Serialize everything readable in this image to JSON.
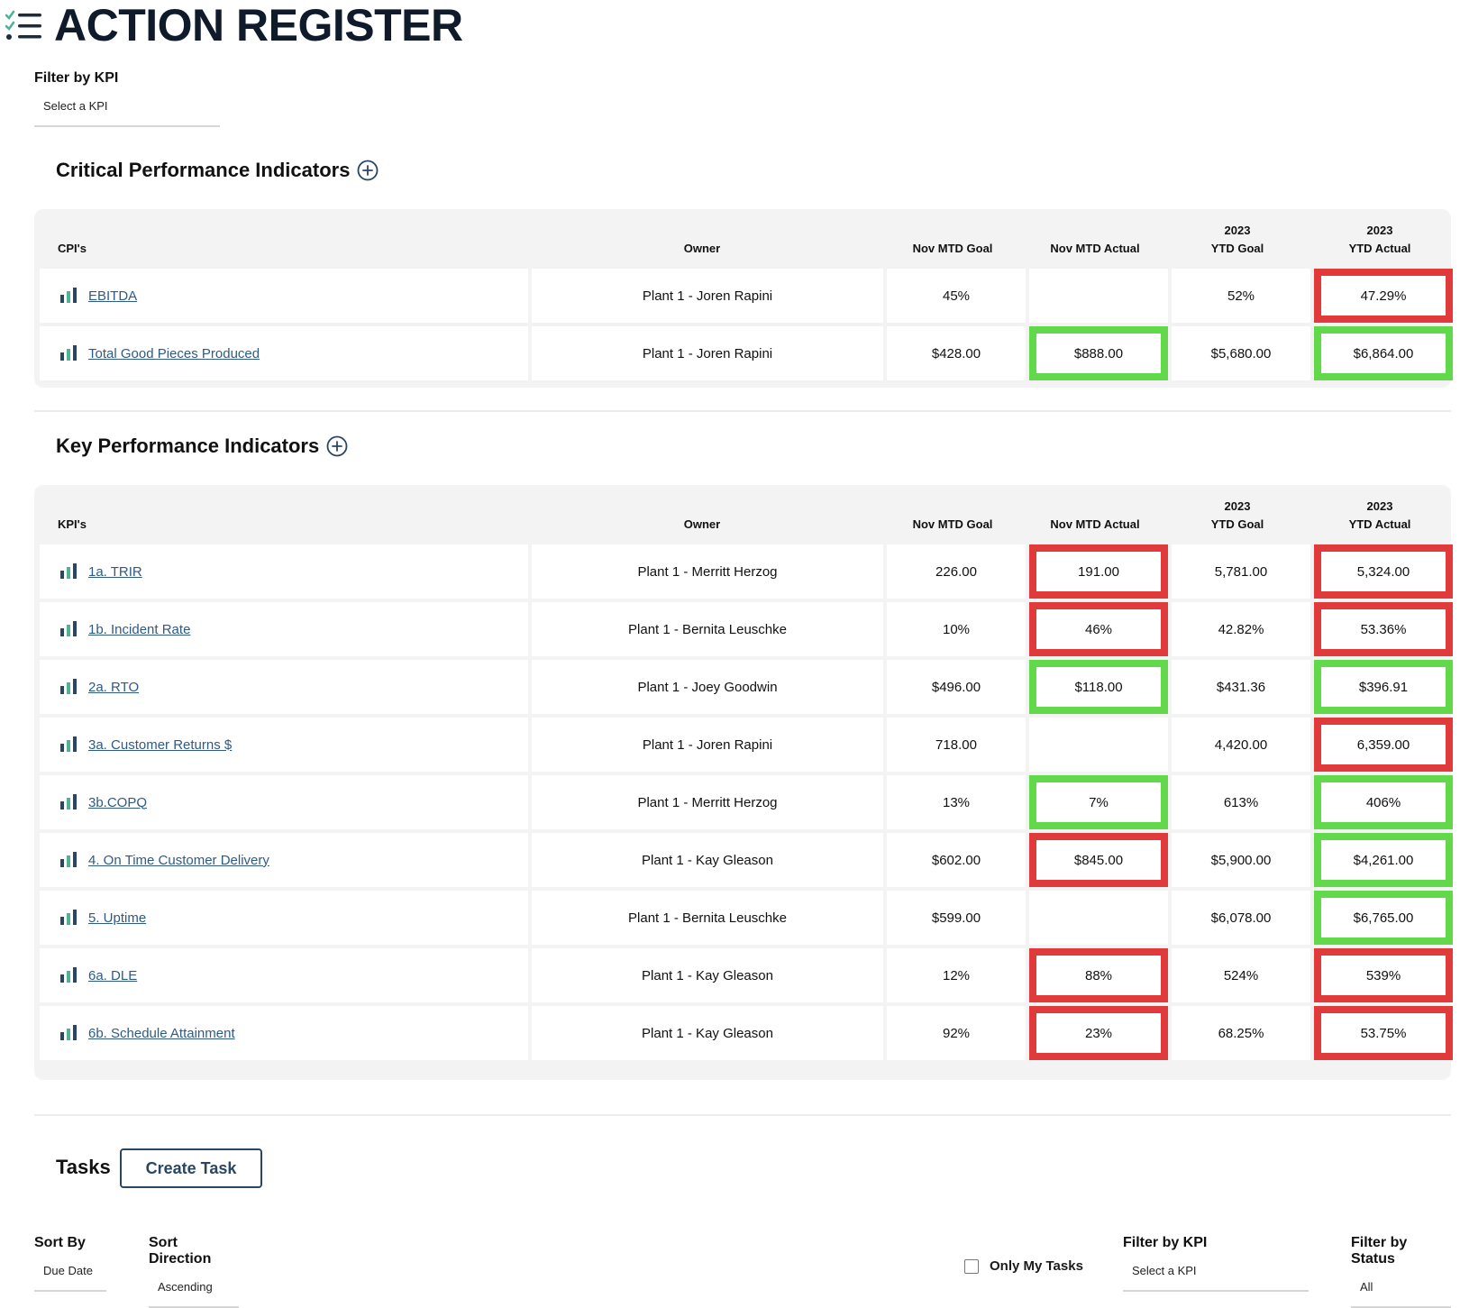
{
  "header": {
    "title": "ACTION REGISTER"
  },
  "kpi_filter_top": {
    "label": "Filter by KPI",
    "value": "Select a KPI"
  },
  "cpi": {
    "title": "Critical Performance Indicators",
    "columns": {
      "name": "CPI's",
      "owner": "Owner",
      "mtd_goal": "Nov MTD Goal",
      "mtd_actual": "Nov MTD Actual",
      "ytd_goal_year": "2023",
      "ytd_goal": "YTD Goal",
      "ytd_actual_year": "2023",
      "ytd_actual": "YTD Actual"
    },
    "rows": [
      {
        "name": "EBITDA",
        "owner": "Plant 1 - Joren Rapini",
        "mtd_goal": "45%",
        "mtd_actual": "",
        "mtd_actual_status": "none",
        "ytd_goal": "52%",
        "ytd_actual": "47.29%",
        "ytd_actual_status": "red"
      },
      {
        "name": "Total Good Pieces Produced",
        "owner": "Plant 1 - Joren Rapini",
        "mtd_goal": "$428.00",
        "mtd_actual": "$888.00",
        "mtd_actual_status": "green",
        "ytd_goal": "$5,680.00",
        "ytd_actual": "$6,864.00",
        "ytd_actual_status": "green"
      }
    ]
  },
  "kpi": {
    "title": "Key Performance Indicators",
    "columns": {
      "name": "KPI's",
      "owner": "Owner",
      "mtd_goal": "Nov MTD Goal",
      "mtd_actual": "Nov MTD Actual",
      "ytd_goal_year": "2023",
      "ytd_goal": "YTD Goal",
      "ytd_actual_year": "2023",
      "ytd_actual": "YTD Actual"
    },
    "rows": [
      {
        "name": "1a. TRIR",
        "owner": "Plant 1 - Merritt Herzog",
        "mtd_goal": "226.00",
        "mtd_actual": "191.00",
        "mtd_actual_status": "red",
        "ytd_goal": "5,781.00",
        "ytd_actual": "5,324.00",
        "ytd_actual_status": "red"
      },
      {
        "name": "1b. Incident Rate",
        "owner": "Plant 1 - Bernita Leuschke",
        "mtd_goal": "10%",
        "mtd_actual": "46%",
        "mtd_actual_status": "red",
        "ytd_goal": "42.82%",
        "ytd_actual": "53.36%",
        "ytd_actual_status": "red"
      },
      {
        "name": "2a. RTO",
        "owner": "Plant 1 - Joey Goodwin",
        "mtd_goal": "$496.00",
        "mtd_actual": "$118.00",
        "mtd_actual_status": "green",
        "ytd_goal": "$431.36",
        "ytd_actual": "$396.91",
        "ytd_actual_status": "green"
      },
      {
        "name": "3a. Customer Returns $",
        "owner": "Plant 1 - Joren Rapini",
        "mtd_goal": "718.00",
        "mtd_actual": "",
        "mtd_actual_status": "none",
        "ytd_goal": "4,420.00",
        "ytd_actual": "6,359.00",
        "ytd_actual_status": "red"
      },
      {
        "name": "3b.COPQ",
        "owner": "Plant 1 - Merritt Herzog",
        "mtd_goal": "13%",
        "mtd_actual": "7%",
        "mtd_actual_status": "green",
        "ytd_goal": "613%",
        "ytd_actual": "406%",
        "ytd_actual_status": "green"
      },
      {
        "name": "4. On Time Customer Delivery",
        "owner": "Plant 1 - Kay Gleason",
        "mtd_goal": "$602.00",
        "mtd_actual": "$845.00",
        "mtd_actual_status": "red",
        "ytd_goal": "$5,900.00",
        "ytd_actual": "$4,261.00",
        "ytd_actual_status": "green"
      },
      {
        "name": "5. Uptime",
        "owner": "Plant 1 - Bernita Leuschke",
        "mtd_goal": "$599.00",
        "mtd_actual": "",
        "mtd_actual_status": "none",
        "ytd_goal": "$6,078.00",
        "ytd_actual": "$6,765.00",
        "ytd_actual_status": "green"
      },
      {
        "name": "6a. DLE",
        "owner": "Plant 1 - Kay Gleason",
        "mtd_goal": "12%",
        "mtd_actual": "88%",
        "mtd_actual_status": "red",
        "ytd_goal": "524%",
        "ytd_actual": "539%",
        "ytd_actual_status": "red"
      },
      {
        "name": "6b. Schedule Attainment",
        "owner": "Plant 1 - Kay Gleason",
        "mtd_goal": "92%",
        "mtd_actual": "23%",
        "mtd_actual_status": "red",
        "ytd_goal": "68.25%",
        "ytd_actual": "53.75%",
        "ytd_actual_status": "red"
      }
    ]
  },
  "tasks": {
    "title": "Tasks",
    "create_label": "Create Task",
    "sort_by": {
      "label": "Sort By",
      "value": "Due Date"
    },
    "sort_direction": {
      "label": "Sort Direction",
      "value": "Ascending"
    },
    "only_my_tasks": {
      "label": "Only My Tasks",
      "checked": false
    },
    "filter_kpi": {
      "label": "Filter by KPI",
      "value": "Select a KPI"
    },
    "filter_status": {
      "label": "Filter by Status",
      "value": "All"
    }
  },
  "colors": {
    "red": "#e03a3a",
    "green": "#62d84b",
    "link": "#2f5a86",
    "navy": "#0f1b2a",
    "button": "#2b4662"
  },
  "icons": {
    "header": "checklist-icon",
    "add": "plus-circle-icon",
    "row": "bar-chart-icon"
  }
}
